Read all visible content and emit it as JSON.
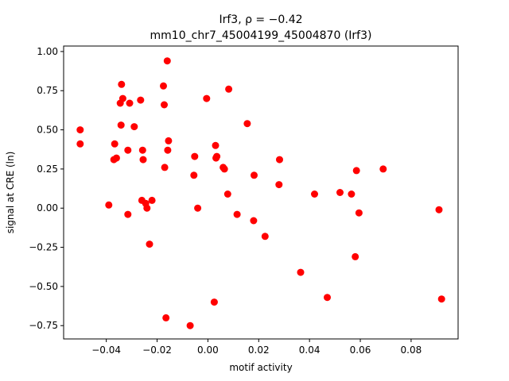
{
  "chart_data": {
    "type": "scatter",
    "title_line1": "Irf3, ρ = −0.42",
    "title_line2": "mm10_chr7_45004199_45004870 (Irf3)",
    "xlabel": "motif activity",
    "ylabel": "signal at CRE (ln)",
    "xlim": [
      -0.0568,
      0.0985
    ],
    "ylim": [
      -0.835,
      1.035
    ],
    "x_ticks": [
      -0.04,
      -0.02,
      0.0,
      0.02,
      0.04,
      0.06,
      0.08
    ],
    "x_tick_labels": [
      "−0.04",
      "−0.02",
      "0.00",
      "0.02",
      "0.04",
      "0.06",
      "0.08"
    ],
    "y_ticks": [
      -0.75,
      -0.5,
      -0.25,
      0.0,
      0.25,
      0.5,
      0.75,
      1.0
    ],
    "y_tick_labels": [
      "−0.75",
      "−0.50",
      "−0.25",
      "0.00",
      "0.25",
      "0.50",
      "0.75",
      "1.00"
    ],
    "marker_color": "#ff0000",
    "grid": false,
    "points": [
      [
        -0.0503,
        0.5
      ],
      [
        -0.0503,
        0.41
      ],
      [
        -0.039,
        0.02
      ],
      [
        -0.037,
        0.31
      ],
      [
        -0.0367,
        0.41
      ],
      [
        -0.036,
        0.32
      ],
      [
        -0.0345,
        0.67
      ],
      [
        -0.0342,
        0.53
      ],
      [
        -0.034,
        0.79
      ],
      [
        -0.0335,
        0.7
      ],
      [
        -0.0315,
        0.37
      ],
      [
        -0.0315,
        -0.04
      ],
      [
        -0.0308,
        0.67
      ],
      [
        -0.029,
        0.52
      ],
      [
        -0.0265,
        0.69
      ],
      [
        -0.026,
        0.05
      ],
      [
        -0.0257,
        0.37
      ],
      [
        -0.0255,
        0.31
      ],
      [
        -0.0245,
        0.03
      ],
      [
        -0.024,
        0.0
      ],
      [
        -0.023,
        -0.23
      ],
      [
        -0.022,
        0.05
      ],
      [
        -0.0175,
        0.78
      ],
      [
        -0.0172,
        0.66
      ],
      [
        -0.017,
        0.26
      ],
      [
        -0.0165,
        -0.7
      ],
      [
        -0.016,
        0.94
      ],
      [
        -0.0158,
        0.37
      ],
      [
        -0.0155,
        0.43
      ],
      [
        -0.007,
        -0.75
      ],
      [
        -0.0055,
        0.21
      ],
      [
        -0.0052,
        0.33
      ],
      [
        -0.004,
        0.0
      ],
      [
        -0.0005,
        0.7
      ],
      [
        0.0025,
        -0.6
      ],
      [
        0.003,
        0.4
      ],
      [
        0.0032,
        0.32
      ],
      [
        0.0035,
        0.33
      ],
      [
        0.006,
        0.26
      ],
      [
        0.0065,
        0.25
      ],
      [
        0.0078,
        0.09
      ],
      [
        0.0082,
        0.76
      ],
      [
        0.0115,
        -0.04
      ],
      [
        0.0155,
        0.54
      ],
      [
        0.018,
        -0.08
      ],
      [
        0.0182,
        0.21
      ],
      [
        0.0225,
        -0.18
      ],
      [
        0.028,
        0.15
      ],
      [
        0.0282,
        0.31
      ],
      [
        0.0365,
        -0.41
      ],
      [
        0.042,
        0.09
      ],
      [
        0.047,
        -0.57
      ],
      [
        0.052,
        0.1
      ],
      [
        0.0565,
        0.09
      ],
      [
        0.058,
        -0.31
      ],
      [
        0.0585,
        0.24
      ],
      [
        0.0595,
        -0.03
      ],
      [
        0.069,
        0.25
      ],
      [
        0.091,
        -0.01
      ],
      [
        0.092,
        -0.58
      ]
    ]
  }
}
